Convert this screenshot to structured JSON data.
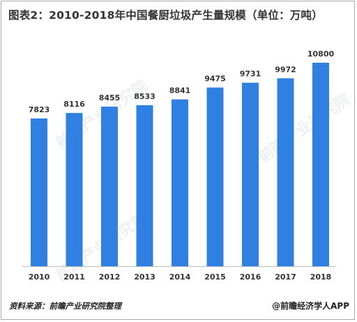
{
  "title": "图表2：2010-2018年中国餐厨垃圾产生量规模（单位：万吨）",
  "source": "资料来源：前瞻产业研究院整理",
  "brand": "@前瞻经济学人APP",
  "watermark": "前瞻产业研究院",
  "colors": {
    "bar": "#2f80e0",
    "axis": "#bfbfbf",
    "label": "#333333"
  },
  "chart_data": {
    "type": "bar",
    "categories": [
      "2010",
      "2011",
      "2012",
      "2013",
      "2014",
      "2015",
      "2016",
      "2017",
      "2018"
    ],
    "values": [
      7823,
      8116,
      8455,
      8533,
      8841,
      9475,
      9731,
      9972,
      10800
    ],
    "title": "图表2：2010-2018年中国餐厨垃圾产生量规模（单位：万吨）",
    "xlabel": "",
    "ylabel": "",
    "unit": "万吨",
    "data_labels": true,
    "grid": false,
    "legend": "none"
  }
}
